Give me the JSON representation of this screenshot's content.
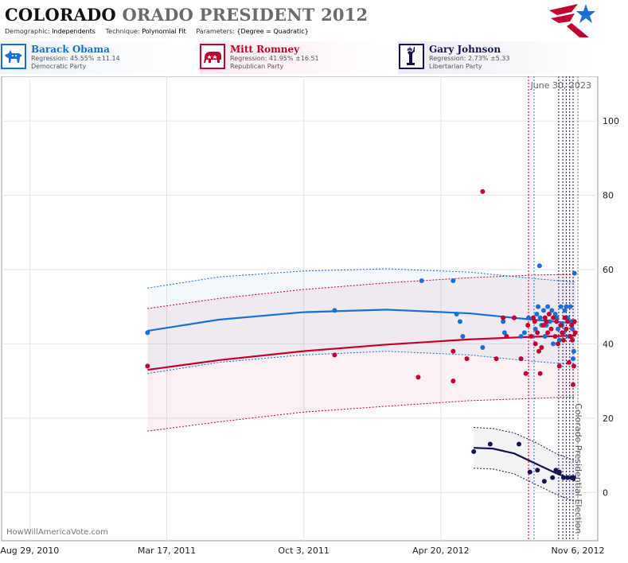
{
  "header": {
    "title_main": "COLORADO",
    "title_rest": "ORADO PRESIDENT 2012",
    "demographic_label": "Demographic:",
    "demographic_value": "Independents",
    "technique_label": "Technique:",
    "technique_value": "Polynomial Fit",
    "parameters_label": "Parameters:",
    "parameters_value": "{Degree = Quadratic}"
  },
  "colors": {
    "obama": "#1a6fd4",
    "romney": "#c2002f",
    "johnson": "#141450"
  },
  "candidates": [
    {
      "name": "Barack Obama",
      "regression": "Regression: 45.55% ±11.14",
      "party": "Democratic Party",
      "icon": "donkey-icon"
    },
    {
      "name": "Mitt Romney",
      "regression": "Regression: 41.95% ±16.51",
      "party": "Republican Party",
      "icon": "elephant-icon"
    },
    {
      "name": "Gary Johnson",
      "regression": "Regression: 2.73% ±5.33",
      "party": "Libertarian Party",
      "icon": "statue-of-liberty-icon"
    }
  ],
  "chart_data": {
    "type": "scatter",
    "x_tick_labels": [
      "Aug 29, 2010",
      "Mar 17, 2011",
      "Oct 3, 2011",
      "Apr 20, 2012",
      "Nov 6, 2012"
    ],
    "y_ticks": [
      0,
      20,
      40,
      60,
      80,
      100
    ],
    "ylim": [
      -13,
      112
    ],
    "xlim": [
      "2010-07-19",
      "2012-12-05"
    ],
    "current_date_label": "June 30, 2023",
    "election_label": "Colorado Presidential Election",
    "watermark": "HowWillAmericaVote.com",
    "series": [
      {
        "name": "Barack Obama",
        "points": [
          [
            "2011-02-17",
            43
          ],
          [
            "2011-11-17",
            49
          ],
          [
            "2012-03-23",
            57
          ],
          [
            "2012-05-08",
            57
          ],
          [
            "2012-05-13",
            48
          ],
          [
            "2012-05-18",
            46
          ],
          [
            "2012-05-22",
            42
          ],
          [
            "2012-06-20",
            39
          ],
          [
            "2012-07-20",
            46
          ],
          [
            "2012-07-22",
            43
          ],
          [
            "2012-08-05",
            47
          ],
          [
            "2012-08-15",
            42
          ],
          [
            "2012-08-20",
            43
          ],
          [
            "2012-08-26",
            47
          ],
          [
            "2012-09-05",
            44
          ],
          [
            "2012-09-07",
            48
          ],
          [
            "2012-09-09",
            50
          ],
          [
            "2012-09-11",
            61
          ],
          [
            "2012-09-12",
            47
          ],
          [
            "2012-09-14",
            45
          ],
          [
            "2012-09-17",
            49
          ],
          [
            "2012-09-19",
            42
          ],
          [
            "2012-09-21",
            45
          ],
          [
            "2012-09-23",
            50
          ],
          [
            "2012-09-26",
            46
          ],
          [
            "2012-09-29",
            49
          ],
          [
            "2012-10-01",
            40
          ],
          [
            "2012-10-04",
            48
          ],
          [
            "2012-10-06",
            47
          ],
          [
            "2012-10-08",
            44
          ],
          [
            "2012-10-10",
            41
          ],
          [
            "2012-10-12",
            50
          ],
          [
            "2012-10-14",
            45
          ],
          [
            "2012-10-16",
            43
          ],
          [
            "2012-10-18",
            49
          ],
          [
            "2012-10-20",
            50
          ],
          [
            "2012-10-22",
            47
          ],
          [
            "2012-10-24",
            42
          ],
          [
            "2012-10-26",
            50
          ],
          [
            "2012-10-28",
            46
          ],
          [
            "2012-10-29",
            44
          ],
          [
            "2012-10-30",
            36
          ],
          [
            "2012-10-31",
            38
          ],
          [
            "2012-11-01",
            59
          ]
        ],
        "fit": [
          [
            "2011-02-17",
            43.5
          ],
          [
            "2011-06-01",
            46.5
          ],
          [
            "2011-10-01",
            48.5
          ],
          [
            "2012-02-01",
            49.2
          ],
          [
            "2012-06-01",
            48.2
          ],
          [
            "2012-09-01",
            46.5
          ],
          [
            "2012-11-03",
            45.5
          ]
        ],
        "band_upper": [
          [
            "2011-02-17",
            55
          ],
          [
            "2011-06-01",
            58
          ],
          [
            "2011-10-01",
            59.6
          ],
          [
            "2012-02-01",
            60.2
          ],
          [
            "2012-06-01",
            59.3
          ],
          [
            "2012-09-01",
            57.6
          ],
          [
            "2012-11-03",
            56.6
          ]
        ],
        "band_lower": [
          [
            "2011-02-17",
            32
          ],
          [
            "2011-06-01",
            35
          ],
          [
            "2011-10-01",
            37
          ],
          [
            "2012-02-01",
            38
          ],
          [
            "2012-06-01",
            37
          ],
          [
            "2012-09-01",
            35.3
          ],
          [
            "2012-11-03",
            34.4
          ]
        ]
      },
      {
        "name": "Mitt Romney",
        "points": [
          [
            "2011-02-17",
            34
          ],
          [
            "2011-11-17",
            37
          ],
          [
            "2012-03-18",
            31
          ],
          [
            "2012-05-08",
            38
          ],
          [
            "2012-05-08",
            30
          ],
          [
            "2012-05-28",
            36
          ],
          [
            "2012-06-20",
            81
          ],
          [
            "2012-07-10",
            36
          ],
          [
            "2012-07-20",
            47
          ],
          [
            "2012-07-25",
            42
          ],
          [
            "2012-08-05",
            47
          ],
          [
            "2012-08-15",
            36
          ],
          [
            "2012-08-22",
            32
          ],
          [
            "2012-08-25",
            45
          ],
          [
            "2012-08-30",
            42
          ],
          [
            "2012-09-02",
            47
          ],
          [
            "2012-09-04",
            46
          ],
          [
            "2012-09-05",
            40
          ],
          [
            "2012-09-08",
            43
          ],
          [
            "2012-09-10",
            38
          ],
          [
            "2012-09-12",
            32
          ],
          [
            "2012-09-14",
            39
          ],
          [
            "2012-09-17",
            45
          ],
          [
            "2012-09-19",
            47
          ],
          [
            "2012-09-21",
            46
          ],
          [
            "2012-09-23",
            43
          ],
          [
            "2012-09-25",
            48
          ],
          [
            "2012-09-28",
            44
          ],
          [
            "2012-10-01",
            47
          ],
          [
            "2012-10-04",
            42
          ],
          [
            "2012-10-06",
            46
          ],
          [
            "2012-10-08",
            40
          ],
          [
            "2012-10-10",
            34
          ],
          [
            "2012-10-12",
            45
          ],
          [
            "2012-10-14",
            43
          ],
          [
            "2012-10-16",
            41
          ],
          [
            "2012-10-18",
            47
          ],
          [
            "2012-10-20",
            44
          ],
          [
            "2012-10-22",
            46
          ],
          [
            "2012-10-24",
            35
          ],
          [
            "2012-10-26",
            42
          ],
          [
            "2012-10-28",
            45
          ],
          [
            "2012-10-29",
            41
          ],
          [
            "2012-10-30",
            29
          ],
          [
            "2012-10-31",
            34
          ],
          [
            "2012-11-01",
            46
          ],
          [
            "2012-11-02",
            43
          ]
        ],
        "fit": [
          [
            "2011-02-17",
            33
          ],
          [
            "2011-06-01",
            35.6
          ],
          [
            "2011-10-01",
            38
          ],
          [
            "2012-02-01",
            39.8
          ],
          [
            "2012-06-01",
            41.2
          ],
          [
            "2012-09-01",
            41.9
          ],
          [
            "2012-11-03",
            42.2
          ]
        ],
        "band_upper": [
          [
            "2011-02-17",
            49.5
          ],
          [
            "2011-06-01",
            52.2
          ],
          [
            "2011-10-01",
            54.6
          ],
          [
            "2012-02-01",
            56.4
          ],
          [
            "2012-06-01",
            57.8
          ],
          [
            "2012-09-01",
            58.5
          ],
          [
            "2012-11-03",
            58.7
          ]
        ],
        "band_lower": [
          [
            "2011-02-17",
            16.5
          ],
          [
            "2011-06-01",
            19
          ],
          [
            "2011-10-01",
            21.6
          ],
          [
            "2012-02-01",
            23.2
          ],
          [
            "2012-06-01",
            24.7
          ],
          [
            "2012-09-01",
            25.3
          ],
          [
            "2012-11-03",
            25.7
          ]
        ]
      },
      {
        "name": "Gary Johnson",
        "points": [
          [
            "2012-06-07",
            11
          ],
          [
            "2012-07-01",
            13
          ],
          [
            "2012-08-12",
            13
          ],
          [
            "2012-08-28",
            5.5
          ],
          [
            "2012-09-08",
            6
          ],
          [
            "2012-09-18",
            3
          ],
          [
            "2012-09-30",
            4
          ],
          [
            "2012-10-05",
            6
          ],
          [
            "2012-10-10",
            5.5
          ],
          [
            "2012-10-16",
            4
          ],
          [
            "2012-10-22",
            4
          ],
          [
            "2012-10-28",
            4
          ],
          [
            "2012-10-31",
            4
          ]
        ],
        "fit": [
          [
            "2012-06-07",
            12
          ],
          [
            "2012-07-05",
            11.8
          ],
          [
            "2012-08-05",
            10.5
          ],
          [
            "2012-09-05",
            7.8
          ],
          [
            "2012-10-05",
            5.2
          ],
          [
            "2012-11-02",
            3.2
          ]
        ],
        "band_upper": [
          [
            "2012-06-07",
            17.5
          ],
          [
            "2012-07-05",
            17.2
          ],
          [
            "2012-08-05",
            16
          ],
          [
            "2012-09-05",
            13.5
          ],
          [
            "2012-10-05",
            10.5
          ],
          [
            "2012-11-02",
            8.5
          ]
        ],
        "band_lower": [
          [
            "2012-06-07",
            6.5
          ],
          [
            "2012-07-05",
            6.3
          ],
          [
            "2012-08-05",
            5
          ],
          [
            "2012-09-05",
            2.2
          ],
          [
            "2012-10-05",
            -0.5
          ],
          [
            "2012-11-02",
            -2.5
          ]
        ]
      }
    ],
    "vertical_lines": {
      "romney": [
        "2012-08-26"
      ],
      "obama": [
        "2012-09-03"
      ],
      "johnson": [
        "2012-10-09",
        "2012-10-15",
        "2012-10-20",
        "2012-10-25",
        "2012-10-30"
      ],
      "gray": [
        "2012-11-06"
      ]
    }
  }
}
